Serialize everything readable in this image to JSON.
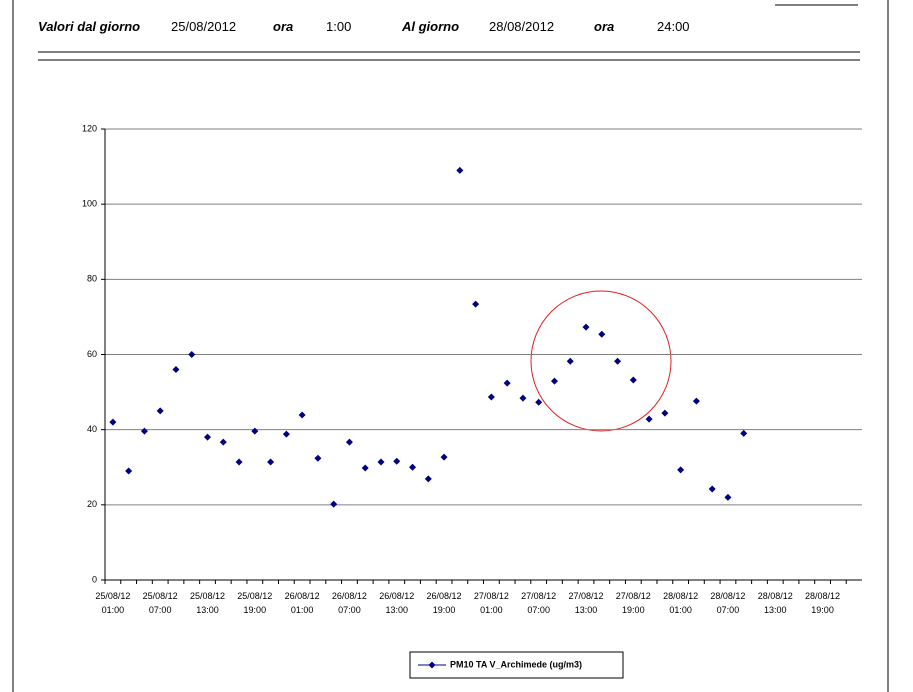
{
  "header": {
    "from_label": "Valori dal giorno",
    "from_date": "25/08/2012",
    "from_time_label": "ora",
    "from_time": "1:00",
    "to_label": "Al giorno",
    "to_date": "28/08/2012",
    "to_time_label": "ora",
    "to_time": "24:00"
  },
  "chart_data": {
    "type": "scatter",
    "marker": "diamond",
    "categories": [
      "25/08/12 01:00",
      null,
      null,
      "25/08/12 07:00",
      null,
      null,
      "25/08/12 13:00",
      null,
      null,
      "25/08/12 19:00",
      null,
      null,
      "26/08/12 01:00",
      null,
      null,
      "26/08/12 07:00",
      null,
      null,
      "26/08/12 13:00",
      null,
      null,
      "26/08/12 19:00",
      null,
      null,
      "27/08/12 01:00",
      null,
      null,
      "27/08/12 07:00",
      null,
      null,
      "27/08/12 13:00",
      null,
      null,
      "27/08/12 19:00",
      null,
      null,
      "28/08/12 01:00",
      null,
      null,
      "28/08/12 07:00",
      null,
      null,
      "28/08/12 13:00",
      null,
      null,
      "28/08/12 19:00",
      null,
      null
    ],
    "series": [
      {
        "name": "PM10 TA V_Archimede (ug/m3)",
        "color": "#000080",
        "values": [
          42,
          29,
          39.6,
          45,
          56,
          60,
          38,
          36.7,
          31.4,
          39.6,
          31.4,
          38.8,
          43.9,
          32.4,
          20.2,
          36.7,
          29.8,
          31.4,
          31.6,
          30,
          26.9,
          32.7,
          109,
          73.4,
          48.7,
          52.4,
          48.4,
          47.3,
          52.9,
          58.2,
          67.3,
          65.4,
          58.2,
          53.2,
          42.8,
          44.4,
          29.3,
          47.6,
          24.2,
          22,
          39,
          null,
          null,
          null,
          null,
          null,
          null,
          null
        ]
      }
    ],
    "ylim": [
      0,
      120
    ],
    "yticks": [
      0,
      20,
      40,
      60,
      80,
      100,
      120
    ],
    "grid": true,
    "legend": "bottom"
  }
}
